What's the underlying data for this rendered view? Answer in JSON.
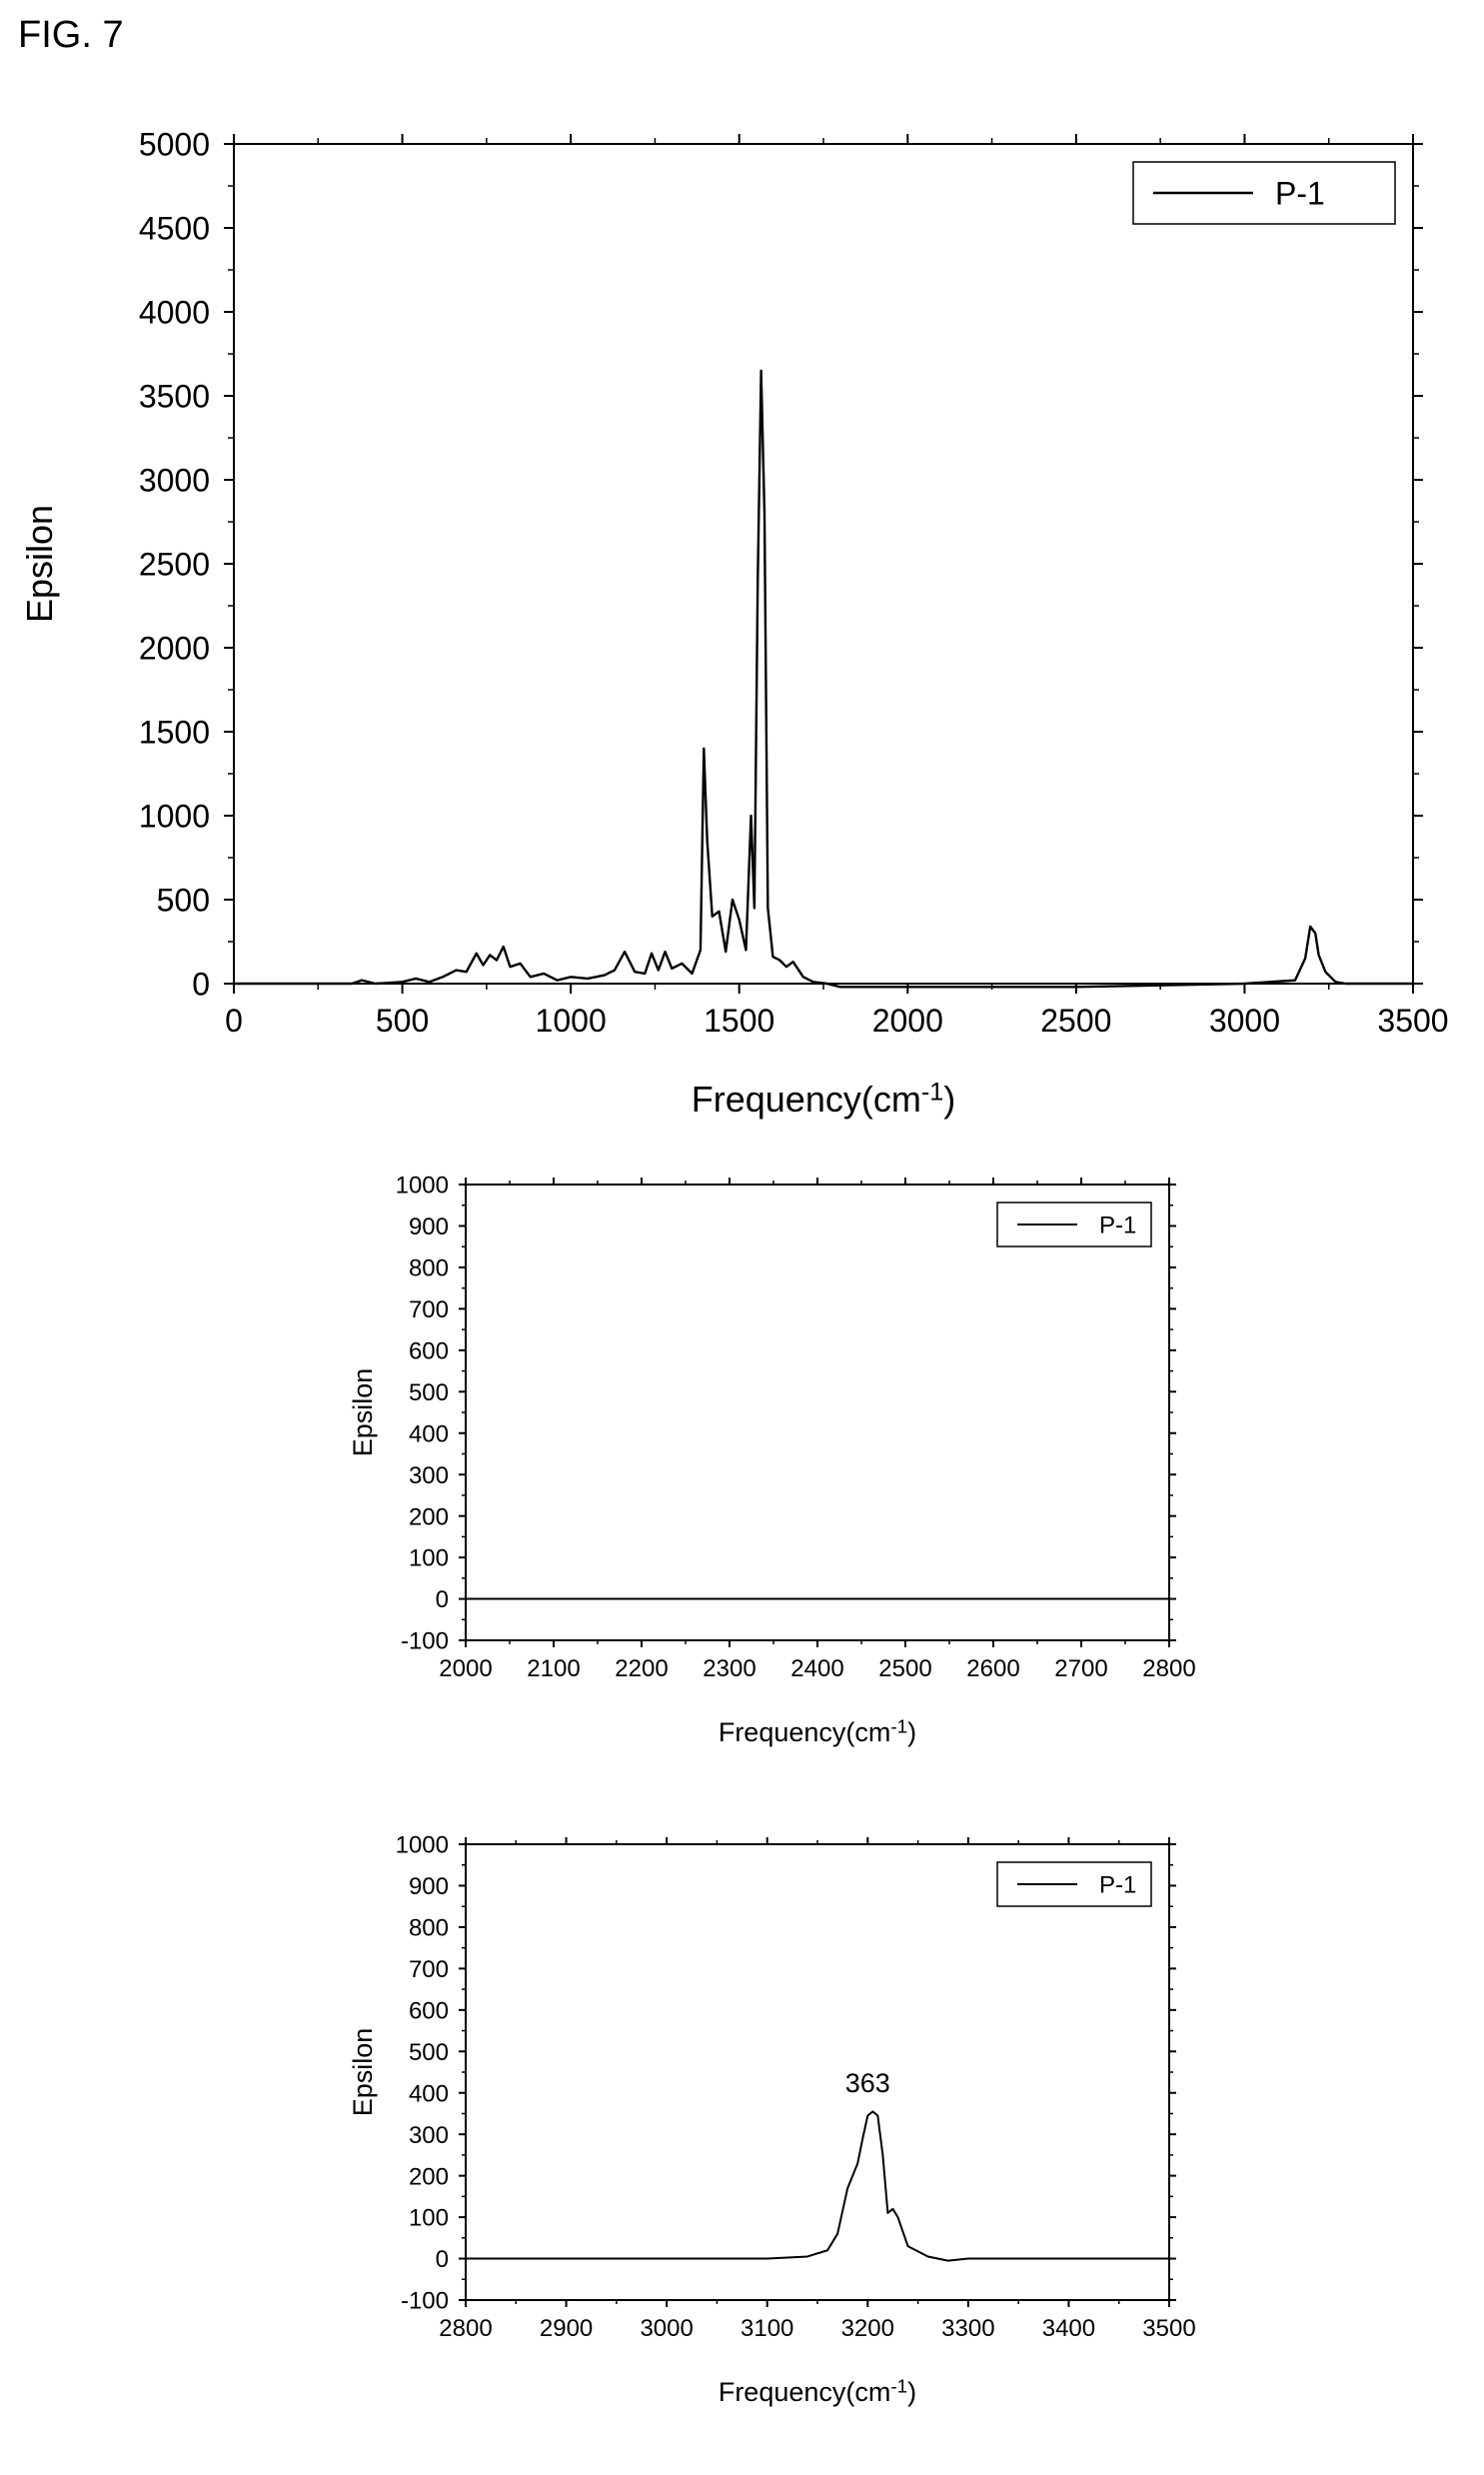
{
  "figure_label": "FIG. 7",
  "charts": [
    {
      "chart_data": {
        "type": "line",
        "xlabel": "Frequency(cm",
        "xlabel_sup": "-1",
        "xlabel_close": ")",
        "ylabel": "Epsilon",
        "xlim": [
          0,
          3500
        ],
        "ylim": [
          0,
          5000
        ],
        "xticks": [
          0,
          500,
          1000,
          1500,
          2000,
          2500,
          3000,
          3500
        ],
        "yticks": [
          0,
          500,
          1000,
          1500,
          2000,
          2500,
          3000,
          3500,
          4000,
          4500,
          5000
        ],
        "legend": [
          "P-1"
        ],
        "legend_position": "top-right",
        "grid": false,
        "series": [
          {
            "name": "P-1",
            "x": [
              0,
              350,
              380,
              420,
              500,
              540,
              580,
              620,
              660,
              690,
              720,
              740,
              760,
              780,
              800,
              820,
              850,
              880,
              920,
              960,
              1000,
              1050,
              1100,
              1130,
              1160,
              1190,
              1220,
              1240,
              1260,
              1280,
              1300,
              1330,
              1360,
              1385,
              1395,
              1405,
              1420,
              1440,
              1460,
              1480,
              1500,
              1520,
              1535,
              1545,
              1555,
              1565,
              1575,
              1585,
              1600,
              1620,
              1640,
              1660,
              1690,
              1720,
              1760,
              1800,
              2000,
              2500,
              3000,
              3150,
              3180,
              3195,
              3210,
              3220,
              3240,
              3270,
              3300,
              3500
            ],
            "y": [
              0,
              0,
              20,
              0,
              10,
              30,
              10,
              40,
              80,
              70,
              180,
              110,
              170,
              140,
              220,
              100,
              120,
              40,
              60,
              20,
              40,
              30,
              50,
              80,
              190,
              70,
              60,
              180,
              80,
              190,
              90,
              120,
              60,
              200,
              1400,
              850,
              400,
              430,
              190,
              500,
              380,
              200,
              1000,
              450,
              2400,
              3650,
              2800,
              450,
              160,
              140,
              100,
              130,
              40,
              10,
              0,
              -20,
              -20,
              -20,
              0,
              20,
              150,
              340,
              300,
              170,
              70,
              10,
              0,
              0
            ]
          }
        ]
      }
    },
    {
      "chart_data": {
        "type": "line",
        "xlabel": "Frequency(cm",
        "xlabel_sup": "-1",
        "xlabel_close": ")",
        "ylabel": "Epsilon",
        "xlim": [
          2000,
          2800
        ],
        "ylim": [
          -100,
          1000
        ],
        "xticks": [
          2000,
          2100,
          2200,
          2300,
          2400,
          2500,
          2600,
          2700,
          2800
        ],
        "yticks": [
          -100,
          0,
          100,
          200,
          300,
          400,
          500,
          600,
          700,
          800,
          900,
          1000
        ],
        "legend": [
          "P-1"
        ],
        "legend_position": "top-right",
        "grid": false,
        "series": [
          {
            "name": "P-1",
            "x": [
              2000,
              2800
            ],
            "y": [
              0,
              0
            ]
          }
        ]
      }
    },
    {
      "chart_data": {
        "type": "line",
        "xlabel": "Frequency(cm",
        "xlabel_sup": "-1",
        "xlabel_close": ")",
        "ylabel": "Epsilon",
        "xlim": [
          2800,
          3500
        ],
        "ylim": [
          -100,
          1000
        ],
        "xticks": [
          2800,
          2900,
          3000,
          3100,
          3200,
          3300,
          3400,
          3500
        ],
        "yticks": [
          -100,
          0,
          100,
          200,
          300,
          400,
          500,
          600,
          700,
          800,
          900,
          1000
        ],
        "legend": [
          "P-1"
        ],
        "legend_position": "top-right",
        "grid": false,
        "annotations": [
          {
            "text": "363",
            "x": 3200,
            "y": 363
          }
        ],
        "series": [
          {
            "name": "P-1",
            "x": [
              2800,
              3000,
              3100,
              3140,
              3160,
              3170,
              3180,
              3190,
              3195,
              3200,
              3205,
              3210,
              3215,
              3220,
              3225,
              3230,
              3240,
              3260,
              3280,
              3300,
              3350,
              3500
            ],
            "y": [
              0,
              0,
              0,
              5,
              20,
              60,
              170,
              230,
              290,
              345,
              355,
              345,
              250,
              110,
              120,
              100,
              30,
              5,
              -5,
              0,
              0,
              0
            ]
          }
        ]
      }
    }
  ]
}
